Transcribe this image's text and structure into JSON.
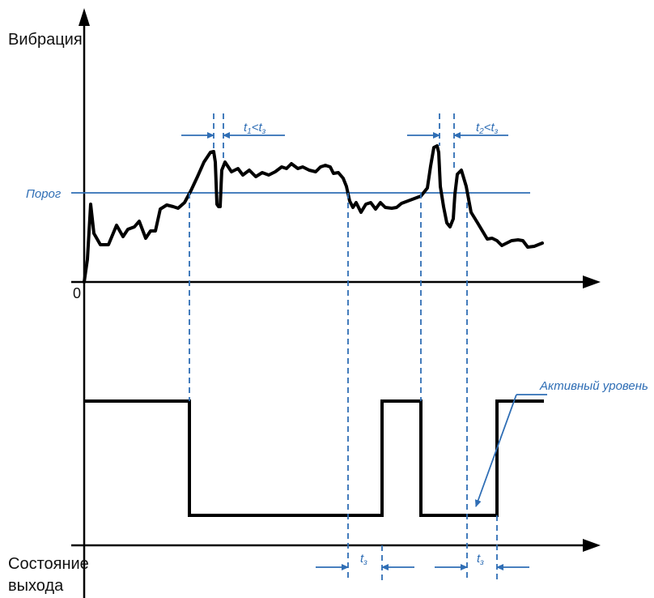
{
  "labels": {
    "vibration_axis": "Вибрация",
    "origin": "0",
    "output_state_line1": "Состояние",
    "output_state_line2": "выхода",
    "threshold": "Порог",
    "active_level": "Активный уровень"
  },
  "annotations": {
    "t1_part1": "t",
    "t1_sub": "1",
    "t1_mid": "<t",
    "t1_sub2": "з",
    "t2_part1": "t",
    "t2_sub": "2",
    "t2_mid": "<t",
    "t2_sub2": "з",
    "tz_a_main": "t",
    "tz_a_sub": "з",
    "tz_b_main": "t",
    "tz_b_sub": "з"
  },
  "colors": {
    "signal": "#000000",
    "accent": "#2f6eb5",
    "axis": "#000000"
  }
}
